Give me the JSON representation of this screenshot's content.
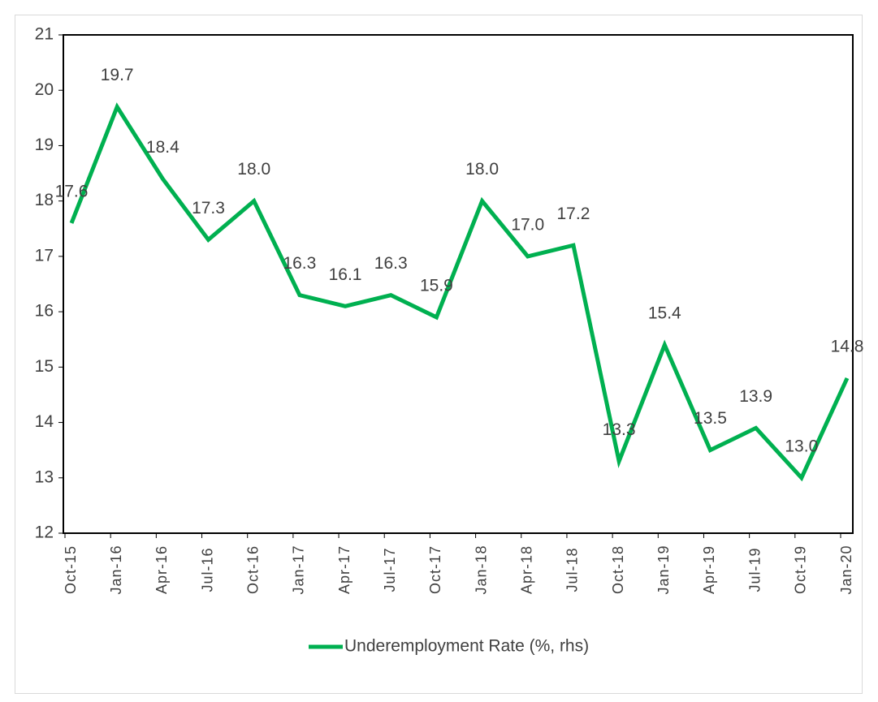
{
  "chart_data": {
    "type": "line",
    "categories": [
      "Oct-15",
      "Jan-16",
      "Apr-16",
      "Jul-16",
      "Oct-16",
      "Jan-17",
      "Apr-17",
      "Jul-17",
      "Oct-17",
      "Jan-18",
      "Apr-18",
      "Jul-18",
      "Oct-18",
      "Jan-19",
      "Apr-19",
      "Jul-19",
      "Oct-19",
      "Jan-20"
    ],
    "series": [
      {
        "name": "Underemployment Rate (%, rhs)",
        "color": "#00b050",
        "values": [
          17.6,
          19.7,
          18.4,
          17.3,
          18.0,
          16.3,
          16.1,
          16.3,
          15.9,
          18.0,
          17.0,
          17.2,
          13.3,
          15.4,
          13.5,
          13.9,
          13.0,
          14.8
        ],
        "value_labels": [
          "17.6",
          "19.7",
          "18.4",
          "17.3",
          "18.0",
          "16.3",
          "16.1",
          "16.3",
          "15.9",
          "18.0",
          "17.0",
          "17.2",
          "13.3",
          "15.4",
          "13.5",
          "13.9",
          "13.0",
          "14.8"
        ]
      }
    ],
    "ylim": [
      12,
      21
    ],
    "yticks": [
      12,
      13,
      14,
      15,
      16,
      17,
      18,
      19,
      20,
      21
    ],
    "grid": false,
    "legend": "bottom"
  }
}
